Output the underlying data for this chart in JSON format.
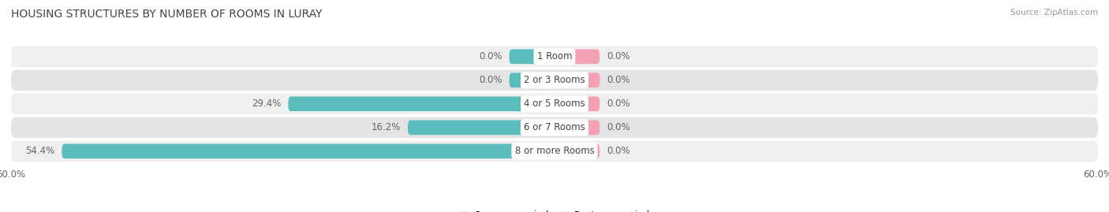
{
  "title": "HOUSING STRUCTURES BY NUMBER OF ROOMS IN LURAY",
  "source": "Source: ZipAtlas.com",
  "categories": [
    "1 Room",
    "2 or 3 Rooms",
    "4 or 5 Rooms",
    "6 or 7 Rooms",
    "8 or more Rooms"
  ],
  "owner_values": [
    0.0,
    0.0,
    29.4,
    16.2,
    54.4
  ],
  "renter_values": [
    0.0,
    0.0,
    0.0,
    0.0,
    0.0
  ],
  "owner_color": "#5bbcbe",
  "renter_color": "#f4a0b5",
  "row_bg_colors": [
    "#efefef",
    "#e4e4e4",
    "#efefef",
    "#e4e4e4",
    "#efefef"
  ],
  "axis_max": 60.0,
  "axis_label_left": "60.0%",
  "axis_label_right": "60.0%",
  "label_color": "#666666",
  "title_color": "#444444",
  "background_color": "#ffffff",
  "bar_height": 0.62,
  "min_stub": 5.0,
  "label_fontsize": 8.5,
  "title_fontsize": 10,
  "category_fontsize": 8.5
}
